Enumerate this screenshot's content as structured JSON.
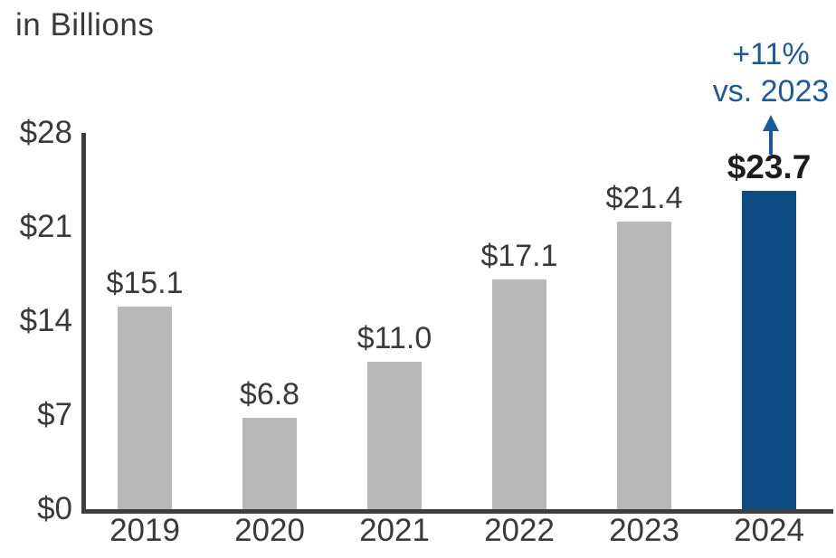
{
  "chart_data": {
    "type": "bar",
    "title": "in Billions",
    "categories": [
      "2019",
      "2020",
      "2021",
      "2022",
      "2023",
      "2024"
    ],
    "values": [
      15.1,
      6.8,
      11.0,
      17.1,
      21.4,
      23.7
    ],
    "value_labels": [
      "$15.1",
      "$6.8",
      "$11.0",
      "$17.1",
      "$21.4",
      "$23.7"
    ],
    "highlight_index": 5,
    "y_ticks": [
      {
        "label": "$0",
        "value": 0
      },
      {
        "label": "$7",
        "value": 7
      },
      {
        "label": "$14",
        "value": 14
      },
      {
        "label": "$21",
        "value": 21
      },
      {
        "label": "$28",
        "value": 28
      }
    ],
    "ylim": [
      0,
      28
    ],
    "grid": false,
    "legend": false,
    "annotation": {
      "line1": "+11%",
      "line2": "vs. 2023",
      "arrow_direction": "up",
      "target_category": "2024"
    },
    "colors": {
      "bar_default": "#b9b9b9",
      "bar_highlight": "#0d4b82",
      "annotation_text": "#1d5a9c",
      "axis": "#3f3f3f",
      "label_text": "#3a3a3a",
      "highlight_value_text": "#1d1d1d"
    }
  }
}
